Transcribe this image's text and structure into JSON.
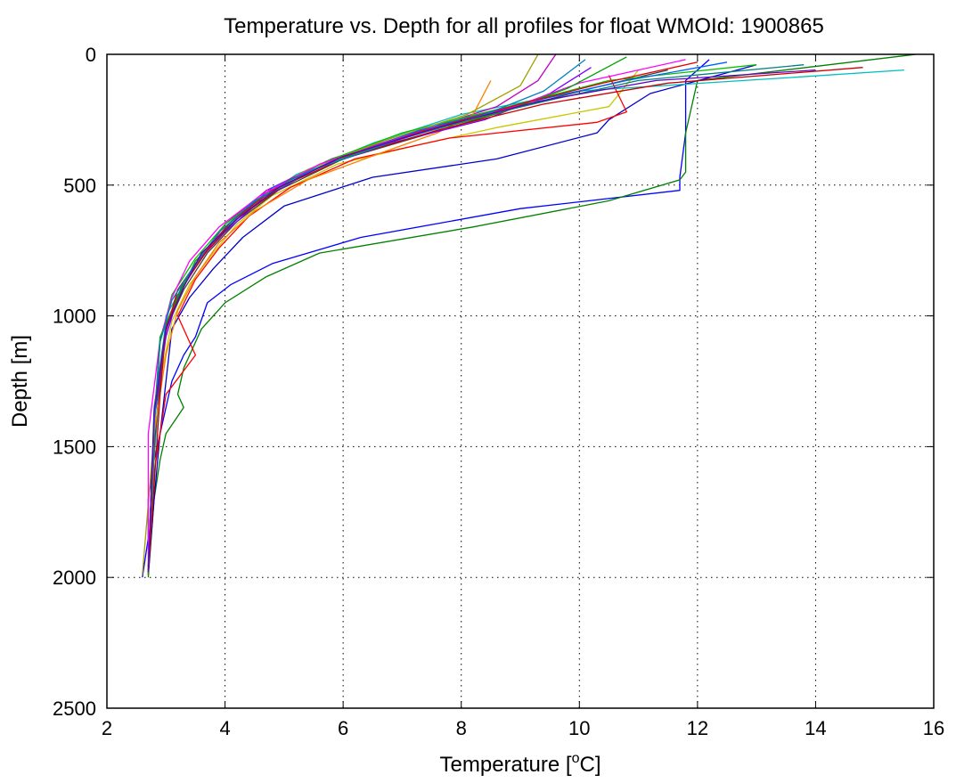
{
  "chart_data": {
    "type": "line",
    "title": "Temperature vs. Depth for all profiles for float WMOId: 1900865",
    "xlabel_main": "Temperature [",
    "xlabel_sup": "o",
    "xlabel_tail": "C]",
    "ylabel": "Depth [m]",
    "xlim": [
      2,
      16
    ],
    "ylim": [
      0,
      2500
    ],
    "y_reversed": true,
    "grid": true,
    "x_ticks": [
      "2",
      "4",
      "6",
      "8",
      "10",
      "12",
      "14",
      "16"
    ],
    "y_ticks": [
      "0",
      "500",
      "1000",
      "1500",
      "2000",
      "2500"
    ],
    "series": [
      {
        "color": "#0000ff",
        "x": [
          12.2,
          11.8,
          11.8,
          11.7,
          11.7,
          9.0,
          6.3,
          4.8,
          4.1,
          3.7,
          3.5,
          3.3,
          3.1,
          3.0,
          2.9,
          2.8,
          2.7,
          2.7,
          2.6
        ],
        "y": [
          20,
          100,
          300,
          470,
          520,
          590,
          700,
          800,
          880,
          950,
          1080,
          1150,
          1250,
          1350,
          1450,
          1550,
          1700,
          1850,
          2000
        ]
      },
      {
        "color": "#008000",
        "x": [
          15.7,
          12.0,
          11.8,
          11.8,
          11.7,
          10.5,
          8.2,
          5.6,
          4.7,
          4.0,
          3.6,
          3.3,
          3.2,
          3.3,
          3.0,
          2.9,
          2.8,
          2.7
        ],
        "y": [
          0,
          100,
          300,
          450,
          480,
          560,
          660,
          760,
          850,
          950,
          1050,
          1200,
          1300,
          1350,
          1450,
          1550,
          1700,
          2000
        ]
      },
      {
        "color": "#0000cc",
        "x": [
          13.0,
          11.2,
          10.5,
          10.3,
          8.6,
          6.5,
          5.0,
          4.3,
          3.8,
          3.4,
          3.1,
          3.0,
          2.9,
          2.8,
          2.7
        ],
        "y": [
          40,
          150,
          250,
          300,
          400,
          470,
          580,
          700,
          820,
          930,
          1050,
          1250,
          1450,
          1700,
          1990
        ]
      },
      {
        "color": "#c8c800",
        "x": [
          11.0,
          10.5,
          8.6,
          7.4,
          5.9,
          4.8,
          4.2,
          3.8,
          3.4,
          3.1,
          2.9,
          2.8,
          2.7
        ],
        "y": [
          60,
          200,
          280,
          340,
          420,
          540,
          650,
          760,
          880,
          1020,
          1250,
          1500,
          1990
        ]
      },
      {
        "color": "#ff0000",
        "x": [
          10.5,
          10.8,
          10.3,
          7.8,
          6.2,
          5.1,
          4.4,
          3.9,
          3.5,
          3.2,
          3.5,
          3.0,
          2.8,
          2.7
        ],
        "y": [
          80,
          220,
          260,
          320,
          400,
          510,
          620,
          740,
          860,
          1000,
          1150,
          1300,
          1600,
          1980
        ]
      },
      {
        "color": "#00bfbf",
        "x": [
          15.5,
          13.5,
          10.0,
          8.0,
          6.5,
          5.2,
          4.3,
          3.7,
          3.3,
          3.0,
          2.9,
          2.8,
          2.7
        ],
        "y": [
          60,
          90,
          140,
          230,
          340,
          460,
          600,
          740,
          880,
          1000,
          1250,
          1550,
          1980
        ]
      },
      {
        "color": "#bf00bf",
        "x": [
          9.6,
          9.3,
          8.6,
          7.2,
          5.8,
          4.7,
          4.0,
          3.6,
          3.2,
          3.0,
          2.9,
          2.8,
          2.7
        ],
        "y": [
          0,
          100,
          200,
          300,
          400,
          520,
          650,
          780,
          920,
          1060,
          1250,
          1500,
          1960
        ]
      },
      {
        "color": "#404040",
        "x": [
          11.5,
          10.2,
          9.0,
          7.5,
          6.0,
          4.9,
          4.2,
          3.7,
          3.3,
          3.0,
          2.9,
          2.8,
          2.7
        ],
        "y": [
          60,
          130,
          200,
          300,
          400,
          520,
          640,
          760,
          900,
          1050,
          1250,
          1500,
          1980
        ]
      },
      {
        "color": "#ff8000",
        "x": [
          8.5,
          8.2,
          7.6,
          6.6,
          5.4,
          4.5,
          3.9,
          3.5,
          3.2,
          3.0,
          2.8,
          2.7
        ],
        "y": [
          100,
          230,
          300,
          380,
          480,
          600,
          720,
          850,
          980,
          1150,
          1450,
          1980
        ]
      },
      {
        "color": "#00c000",
        "x": [
          13.0,
          10.5,
          8.8,
          7.0,
          5.7,
          4.7,
          4.0,
          3.5,
          3.1,
          2.9,
          2.8,
          2.7
        ],
        "y": [
          40,
          100,
          200,
          300,
          410,
          530,
          650,
          780,
          920,
          1100,
          1400,
          1970
        ]
      },
      {
        "color": "#8000ff",
        "x": [
          10.2,
          9.5,
          8.4,
          6.8,
          5.5,
          4.6,
          4.0,
          3.5,
          3.2,
          3.0,
          2.8,
          2.7
        ],
        "y": [
          50,
          150,
          250,
          340,
          440,
          560,
          680,
          800,
          930,
          1080,
          1400,
          1960
        ]
      },
      {
        "color": "#c80000",
        "x": [
          14.8,
          11.5,
          9.4,
          7.6,
          6.1,
          5.0,
          4.2,
          3.7,
          3.3,
          3.0,
          2.9,
          2.7
        ],
        "y": [
          50,
          110,
          190,
          290,
          390,
          500,
          630,
          750,
          880,
          1040,
          1300,
          1990
        ]
      },
      {
        "color": "#a0a000",
        "x": [
          9.3,
          9.0,
          8.1,
          6.7,
          5.4,
          4.5,
          3.9,
          3.5,
          3.1,
          2.9,
          2.8,
          2.6
        ],
        "y": [
          0,
          120,
          230,
          330,
          440,
          560,
          680,
          800,
          940,
          1100,
          1450,
          1990
        ]
      },
      {
        "color": "#0060ff",
        "x": [
          12.5,
          10.8,
          9.2,
          7.3,
          5.9,
          4.8,
          4.1,
          3.6,
          3.2,
          3.0,
          2.8,
          2.7
        ],
        "y": [
          30,
          100,
          180,
          290,
          400,
          510,
          640,
          770,
          900,
          1060,
          1400,
          1970
        ]
      },
      {
        "color": "#ff00ff",
        "x": [
          11.8,
          10.0,
          8.9,
          7.1,
          5.6,
          4.6,
          3.9,
          3.4,
          3.1,
          2.9,
          2.7,
          2.7
        ],
        "y": [
          20,
          110,
          200,
          310,
          420,
          540,
          660,
          790,
          930,
          1090,
          1450,
          1960
        ]
      },
      {
        "color": "#008080",
        "x": [
          13.8,
          11.0,
          9.6,
          7.9,
          6.3,
          5.1,
          4.3,
          3.7,
          3.3,
          3.0,
          2.8,
          2.7
        ],
        "y": [
          40,
          100,
          170,
          260,
          370,
          480,
          610,
          740,
          870,
          1030,
          1350,
          1980
        ]
      },
      {
        "color": "#00a000",
        "x": [
          10.8,
          9.8,
          8.7,
          7.0,
          5.6,
          4.6,
          4.0,
          3.5,
          3.2,
          2.9,
          2.8,
          2.7
        ],
        "y": [
          10,
          130,
          220,
          320,
          430,
          550,
          670,
          790,
          930,
          1080,
          1400,
          1990
        ]
      },
      {
        "color": "#e00000",
        "x": [
          12.0,
          10.4,
          9.0,
          7.4,
          5.9,
          4.8,
          4.1,
          3.6,
          3.2,
          3.0,
          2.8,
          2.7
        ],
        "y": [
          30,
          110,
          190,
          290,
          400,
          520,
          640,
          770,
          900,
          1060,
          1380,
          1970
        ]
      },
      {
        "color": "#0080c0",
        "x": [
          10.1,
          9.4,
          8.4,
          6.9,
          5.5,
          4.5,
          3.9,
          3.5,
          3.1,
          2.9,
          2.8,
          2.7
        ],
        "y": [
          20,
          140,
          230,
          330,
          440,
          560,
          680,
          800,
          940,
          1100,
          1420,
          1960
        ]
      },
      {
        "color": "#6000c0",
        "x": [
          14.0,
          11.3,
          9.3,
          7.6,
          6.0,
          4.9,
          4.2,
          3.6,
          3.3,
          3.0,
          2.8,
          2.7
        ],
        "y": [
          60,
          100,
          180,
          280,
          390,
          510,
          630,
          760,
          890,
          1050,
          1370,
          1980
        ]
      }
    ]
  }
}
